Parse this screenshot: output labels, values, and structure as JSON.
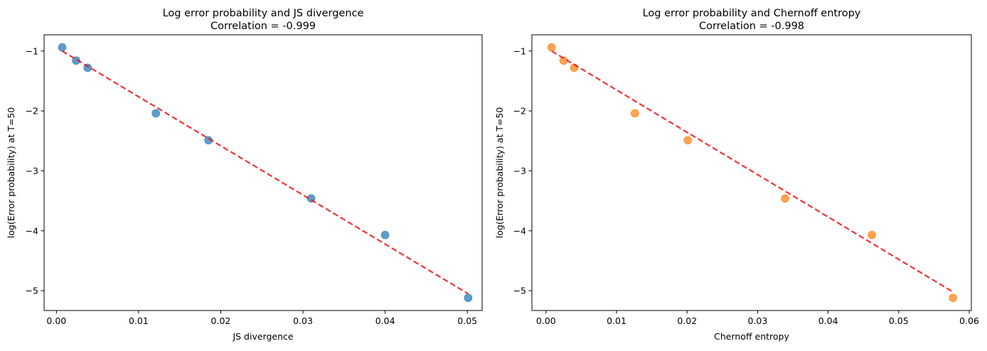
{
  "chart_data": [
    {
      "type": "scatter",
      "title": "Log error probability and JS divergence",
      "subtitle": "Correlation = -0.999",
      "xlabel": "JS divergence",
      "ylabel": "log(Error probability) at T=50",
      "xlim": [
        -0.0015,
        0.0518
      ],
      "ylim": [
        -5.33,
        -0.73
      ],
      "xticks": [
        0.0,
        0.01,
        0.02,
        0.03,
        0.04,
        0.05
      ],
      "xtick_labels": [
        "0.00",
        "0.01",
        "0.02",
        "0.03",
        "0.04",
        "0.05"
      ],
      "yticks": [
        -1,
        -2,
        -3,
        -4,
        -5
      ],
      "ytick_labels": [
        "−1",
        "−2",
        "−3",
        "−4",
        "−5"
      ],
      "grid": false,
      "marker_color": "#1f77b4",
      "fit_color": "#ee1111",
      "points": [
        {
          "x": 0.0007,
          "y": -0.94
        },
        {
          "x": 0.0024,
          "y": -1.16
        },
        {
          "x": 0.0038,
          "y": -1.28
        },
        {
          "x": 0.0121,
          "y": -2.04
        },
        {
          "x": 0.0185,
          "y": -2.49
        },
        {
          "x": 0.031,
          "y": -3.46
        },
        {
          "x": 0.04,
          "y": -4.07
        },
        {
          "x": 0.0501,
          "y": -5.12
        }
      ],
      "fit_line": {
        "x": [
          0.0007,
          0.0501
        ],
        "y": [
          -1.0,
          -5.05
        ]
      }
    },
    {
      "type": "scatter",
      "title": "Log error probability and Chernoff entropy",
      "subtitle": "Correlation = -0.998",
      "xlabel": "Chernoff entropy",
      "ylabel": "log(Error probability) at T=50",
      "xlim": [
        -0.002,
        0.0603
      ],
      "ylim": [
        -5.33,
        -0.73
      ],
      "xticks": [
        0.0,
        0.01,
        0.02,
        0.03,
        0.04,
        0.05,
        0.06
      ],
      "xtick_labels": [
        "0.00",
        "0.01",
        "0.02",
        "0.03",
        "0.04",
        "0.05",
        "0.06"
      ],
      "yticks": [
        -1,
        -2,
        -3,
        -4,
        -5
      ],
      "ytick_labels": [
        "−1",
        "−2",
        "−3",
        "−4",
        "−5"
      ],
      "grid": false,
      "marker_color": "#ff7f0e",
      "fit_color": "#ee1111",
      "points": [
        {
          "x": 0.0008,
          "y": -0.94
        },
        {
          "x": 0.0025,
          "y": -1.16
        },
        {
          "x": 0.004,
          "y": -1.28
        },
        {
          "x": 0.0126,
          "y": -2.04
        },
        {
          "x": 0.0201,
          "y": -2.49
        },
        {
          "x": 0.0339,
          "y": -3.46
        },
        {
          "x": 0.0462,
          "y": -4.07
        },
        {
          "x": 0.0577,
          "y": -5.12
        }
      ],
      "fit_line": {
        "x": [
          0.0008,
          0.0577
        ],
        "y": [
          -1.0,
          -5.02
        ]
      }
    }
  ]
}
